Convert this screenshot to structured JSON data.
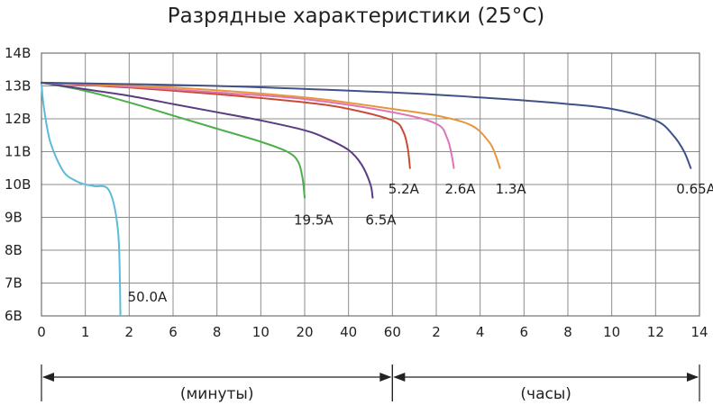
{
  "chart_data": {
    "type": "line",
    "title": "Разрядные характеристики (25°C)",
    "xlabel": "",
    "ylabel": "",
    "y_ticks": [
      {
        "value": 14,
        "label": "14В"
      },
      {
        "value": 13,
        "label": "13В"
      },
      {
        "value": 12,
        "label": "12В"
      },
      {
        "value": 11,
        "label": "11В"
      },
      {
        "value": 10,
        "label": "10В"
      },
      {
        "value": 9,
        "label": "9В"
      },
      {
        "value": 8,
        "label": "8В"
      },
      {
        "value": 7,
        "label": "7В"
      },
      {
        "value": 6,
        "label": "6В"
      }
    ],
    "ylim": [
      6,
      14
    ],
    "x_ticks": [
      "0",
      "1",
      "2",
      "6",
      "8",
      "10",
      "20",
      "40",
      "60",
      "2",
      "4",
      "6",
      "8",
      "10",
      "12",
      "14"
    ],
    "x_spans": [
      {
        "label": "(минуты)",
        "from_tick": 0,
        "to_tick": 8
      },
      {
        "label": "(часы)",
        "from_tick": 8,
        "to_tick": 15
      }
    ],
    "grid": true,
    "series": [
      {
        "name": "50.0A",
        "color": "#5bbbd9",
        "points": [
          [
            0,
            13.1
          ],
          [
            0.05,
            12.4
          ],
          [
            0.2,
            11.3
          ],
          [
            0.5,
            10.4
          ],
          [
            0.8,
            10.1
          ],
          [
            1.0,
            10.0
          ],
          [
            1.2,
            9.95
          ],
          [
            1.55,
            9.8
          ],
          [
            1.75,
            8.5
          ],
          [
            1.8,
            6.0
          ]
        ]
      },
      {
        "name": "19.5A",
        "color": "#4caf4a",
        "points": [
          [
            0,
            13.1
          ],
          [
            1,
            12.85
          ],
          [
            2,
            12.5
          ],
          [
            3,
            12.1
          ],
          [
            4,
            11.7
          ],
          [
            5,
            11.3
          ],
          [
            5.6,
            11.0
          ],
          [
            5.85,
            10.7
          ],
          [
            5.95,
            10.2
          ],
          [
            6.0,
            9.6
          ]
        ]
      },
      {
        "name": "6.5A",
        "color": "#5b3b82",
        "points": [
          [
            0,
            13.1
          ],
          [
            1,
            12.9
          ],
          [
            2,
            12.7
          ],
          [
            3,
            12.45
          ],
          [
            4,
            12.2
          ],
          [
            5,
            11.95
          ],
          [
            6,
            11.65
          ],
          [
            6.5,
            11.4
          ],
          [
            7.0,
            11.05
          ],
          [
            7.3,
            10.6
          ],
          [
            7.5,
            10.0
          ],
          [
            7.55,
            9.6
          ]
        ]
      },
      {
        "name": "5.2A",
        "color": "#c94a36",
        "points": [
          [
            0,
            13.1
          ],
          [
            2,
            12.95
          ],
          [
            4,
            12.75
          ],
          [
            6,
            12.5
          ],
          [
            7,
            12.3
          ],
          [
            8,
            11.95
          ],
          [
            8.25,
            11.6
          ],
          [
            8.35,
            11.1
          ],
          [
            8.4,
            10.5
          ]
        ]
      },
      {
        "name": "2.6A",
        "color": "#de74b8",
        "points": [
          [
            0,
            13.1
          ],
          [
            2,
            12.98
          ],
          [
            4,
            12.8
          ],
          [
            6,
            12.6
          ],
          [
            8,
            12.2
          ],
          [
            9,
            11.85
          ],
          [
            9.25,
            11.4
          ],
          [
            9.35,
            10.9
          ],
          [
            9.4,
            10.5
          ]
        ]
      },
      {
        "name": "1.3A",
        "color": "#e8963a",
        "points": [
          [
            0,
            13.1
          ],
          [
            3,
            12.95
          ],
          [
            6,
            12.65
          ],
          [
            8,
            12.3
          ],
          [
            9,
            12.1
          ],
          [
            9.8,
            11.8
          ],
          [
            10.2,
            11.3
          ],
          [
            10.35,
            10.9
          ],
          [
            10.45,
            10.5
          ]
        ]
      },
      {
        "name": "0.65A",
        "color": "#3f5188",
        "points": [
          [
            0,
            13.1
          ],
          [
            4,
            13.0
          ],
          [
            8,
            12.8
          ],
          [
            10,
            12.65
          ],
          [
            12,
            12.45
          ],
          [
            13,
            12.3
          ],
          [
            14,
            11.95
          ],
          [
            14.4,
            11.5
          ],
          [
            14.65,
            11.0
          ],
          [
            14.8,
            10.5
          ]
        ]
      }
    ]
  }
}
